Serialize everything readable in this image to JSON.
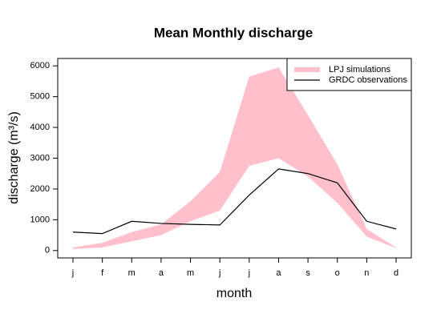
{
  "chart_data": {
    "type": "band-line",
    "title": "Mean Monthly discharge",
    "xlabel": "month",
    "ylabel": "discharge (m³/s)",
    "categories": [
      "j",
      "f",
      "m",
      "a",
      "m",
      "j",
      "j",
      "a",
      "s",
      "o",
      "n",
      "d"
    ],
    "series": [
      {
        "name": "LPJ simulations",
        "color": "#ffc0cb",
        "upper": [
          100,
          250,
          600,
          850,
          1600,
          2550,
          5650,
          5950,
          4400,
          2800,
          700,
          100
        ],
        "lower": [
          50,
          100,
          300,
          500,
          950,
          1300,
          2750,
          3000,
          2400,
          1550,
          450,
          80
        ]
      },
      {
        "name": "GRDC observations",
        "color": "#000000",
        "values": [
          600,
          550,
          950,
          880,
          850,
          830,
          1800,
          2650,
          2500,
          2200,
          950,
          700
        ]
      }
    ],
    "ylim": [
      -240,
      6240
    ],
    "yticks": [
      0,
      1000,
      2000,
      3000,
      4000,
      5000,
      6000
    ],
    "grid": false,
    "legend": "topright"
  }
}
